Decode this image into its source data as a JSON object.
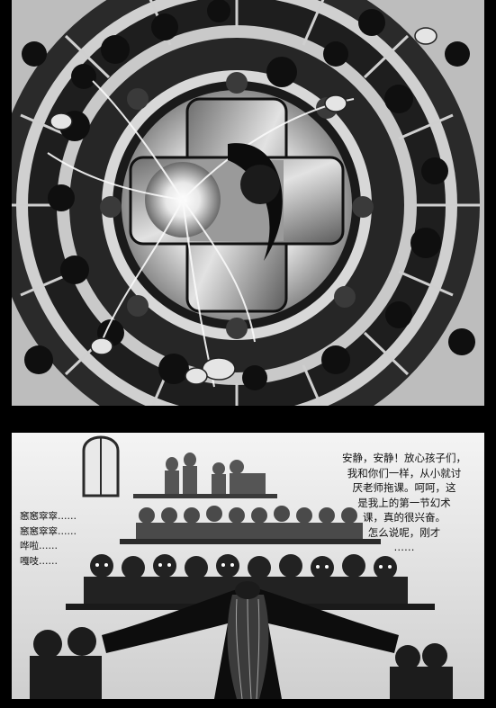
{
  "bottom_panel": {
    "speech_text": "安静，安静！放心孩子们，\n我和你们一样，从小就讨\n厌老师拖课。呵呵，这\n是我上的第一节幻术\n课，真的很兴奋。\n怎么说呢，刚才\n……",
    "sfx_text": "窸窸窣窣……\n窸窸窣窣……\n哗啦……\n嘎吱……"
  }
}
